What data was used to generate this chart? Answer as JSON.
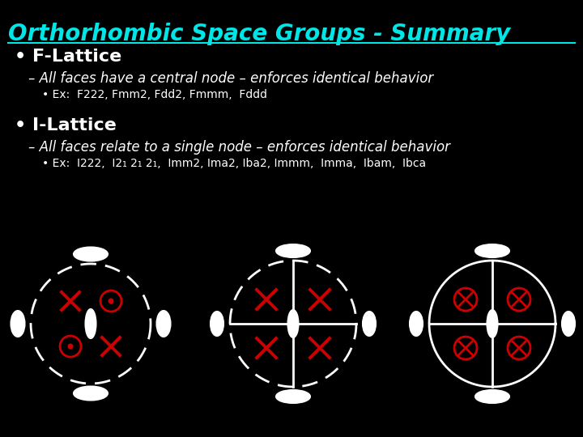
{
  "title": "Orthorhombic Space Groups - Summary",
  "title_color": "#00e5e5",
  "bg_color": "#000000",
  "text_color": "#ffffff",
  "bullet1": "F-Lattice",
  "bullet1_sub": "All faces have a central node – enforces identical behavior",
  "bullet1_ex": "Ex:  F222, Fmm2, Fdd2, Fmmm,  Fddd",
  "bullet2": "I-Lattice",
  "bullet2_sub": "All faces relate to a single node – enforces identical behavior",
  "bullet2_ex": "Ex:  I222,  I2₁ 2₁ 2₁,  Imm2, Ima2, Iba2, Immm,  Imma,  Ibam,  Ibca",
  "red": "#cc0000",
  "white": "#ffffff"
}
